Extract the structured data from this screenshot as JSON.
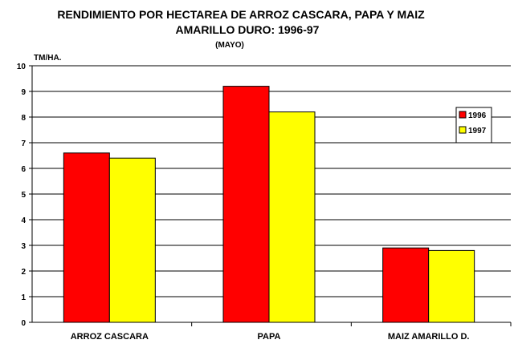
{
  "chart_data": {
    "type": "bar",
    "title": "RENDIMIENTO POR HECTAREA DE ARROZ CASCARA, PAPA Y MAIZ",
    "title_line2": "AMARILLO DURO: 1996-97",
    "subtitle": "(MAYO)",
    "xlabel": "",
    "ylabel": "TM/HA.",
    "ylim": [
      0,
      10
    ],
    "yticks": [
      0,
      1,
      2,
      3,
      4,
      5,
      6,
      7,
      8,
      9,
      10
    ],
    "grid": true,
    "legend_position": "right",
    "categories": [
      "ARROZ CASCARA",
      "PAPA",
      "MAIZ AMARILLO D."
    ],
    "series": [
      {
        "name": "1996",
        "values": [
          6.6,
          9.2,
          2.9
        ],
        "color": "#ff0000"
      },
      {
        "name": "1997",
        "values": [
          6.4,
          8.2,
          2.8
        ],
        "color": "#ffff00"
      }
    ]
  }
}
